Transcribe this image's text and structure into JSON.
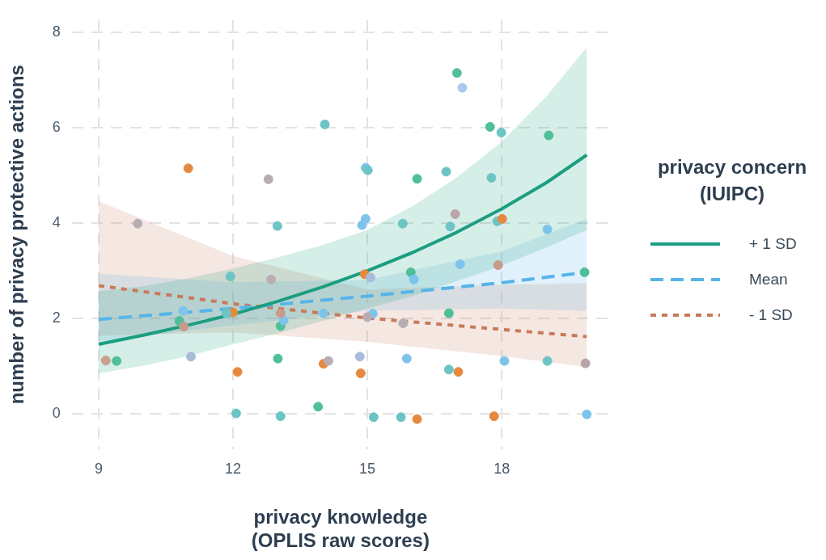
{
  "chart_data": {
    "type": "line",
    "xlabel": "privacy knowledge\n(OPLIS raw scores)",
    "ylabel": "number of privacy protective actions",
    "legend_title": "privacy concern\n(IUIPC)",
    "legend": "right",
    "grid": true,
    "xlim": [
      8.4,
      20.4
    ],
    "ylim": [
      -0.75,
      8.25
    ],
    "xticks": [
      9,
      12,
      15,
      18
    ],
    "yticks": [
      0,
      2,
      4,
      6,
      8
    ],
    "series": [
      {
        "type": "scatter",
        "marker": "circle",
        "x": [
          9.16,
          9.4,
          9.87,
          11.0,
          10.8,
          10.9,
          10.88,
          11.06,
          12.85,
          11.94,
          12.0,
          11.85,
          12.1,
          12.07,
          13.06,
          13.06,
          13.13,
          13.06,
          13.0,
          13.9,
          14.02,
          14.13,
          14.02,
          12.79,
          12.99,
          14.05,
          17.0,
          17.12,
          17.74,
          17.99,
          19.05,
          14.96,
          15.01,
          16.11,
          16.76,
          17.77,
          14.96,
          14.88,
          15.79,
          16.85,
          16.96,
          17.9,
          18.01,
          19.02,
          14.94,
          15.07,
          15.97,
          16.04,
          17.07,
          17.92,
          19.85,
          15.12,
          15.0,
          15.8,
          16.82,
          14.83,
          14.85,
          15.88,
          16.82,
          17.03,
          18.06,
          19.02,
          19.87,
          15.14,
          15.75,
          16.11,
          17.83,
          19.9
        ],
        "values": [
          1.11,
          1.1,
          3.98,
          5.14,
          1.94,
          1.82,
          2.15,
          1.19,
          2.81,
          2.87,
          2.12,
          2.1,
          0.87,
          0,
          -0.06,
          1.83,
          1.95,
          2.1,
          1.15,
          0.14,
          1.04,
          1.1,
          2.1,
          4.91,
          3.93,
          6.06,
          7.14,
          6.83,
          6.01,
          5.89,
          5.83,
          5.15,
          5.1,
          4.92,
          5.07,
          4.94,
          4.08,
          3.95,
          3.98,
          3.92,
          4.18,
          4.03,
          4.08,
          3.86,
          2.92,
          2.85,
          2.96,
          2.81,
          3.13,
          3.11,
          2.96,
          2.09,
          2.02,
          1.89,
          2.1,
          1.19,
          0.84,
          1.15,
          0.92,
          0.87,
          1.1,
          1.1,
          1.05,
          -0.08,
          -0.08,
          -0.12,
          -0.06,
          -0.02
        ],
        "colors": [
          "#c9a090",
          "#4fbf9a",
          "#b9adb5",
          "#e6893f",
          "#4fbf9a",
          "#c9998a",
          "#7ec4ea",
          "#a9bbd8",
          "#b9adb5",
          "#6cc4c4",
          "#e6893f",
          "#6cc4c4",
          "#e6893f",
          "#6cc4c4",
          "#6cc4c4",
          "#4fbf9a",
          "#7ec4ea",
          "#c9998a",
          "#4fbf9a",
          "#4fbf9a",
          "#e6893f",
          "#b9adb5",
          "#7ec4ea",
          "#b9adb5",
          "#6cc4c4",
          "#6cc4c4",
          "#4fbf9a",
          "#a9c8ea",
          "#4fbf9a",
          "#6cc4c4",
          "#4fbf9a",
          "#7ec4ea",
          "#6cc4c4",
          "#4fbf9a",
          "#6cc4c4",
          "#6cc4c4",
          "#7ec4ea",
          "#7ec4ea",
          "#6cc4c4",
          "#6cc4c4",
          "#b9a5a8",
          "#6cc4c4",
          "#e6893f",
          "#7ec4ea",
          "#e6893f",
          "#a9bbd8",
          "#4fbf9a",
          "#7ec4ea",
          "#7ec4ea",
          "#c9998a",
          "#4fbf9a",
          "#7ec4ea",
          "#b9adb5",
          "#b9adb5",
          "#4fbf9a",
          "#a9bbd8",
          "#e6893f",
          "#7ec4ea",
          "#6cc4c4",
          "#e6893f",
          "#7ec4ea",
          "#6cc4c4",
          "#b9a5a8",
          "#6cc4c4",
          "#6cc4c4",
          "#e6893f",
          "#e6893f",
          "#7ec4ea"
        ]
      },
      {
        "name": "+ 1 SD",
        "color": "#1b9e80",
        "line_style": "solid",
        "x": [
          9,
          10,
          11,
          12,
          13,
          14,
          15,
          16,
          17,
          18,
          19,
          19.9
        ],
        "values": [
          1.45,
          1.64,
          1.85,
          2.08,
          2.35,
          2.65,
          2.99,
          3.37,
          3.8,
          4.29,
          4.84,
          5.42
        ],
        "lower": [
          0.84,
          1.0,
          1.2,
          1.45,
          1.68,
          1.94,
          2.2,
          2.46,
          2.77,
          3.1,
          3.48,
          3.85
        ],
        "upper": [
          2.56,
          2.67,
          2.83,
          3.04,
          3.27,
          3.53,
          3.85,
          4.34,
          4.95,
          5.7,
          6.65,
          7.68
        ]
      },
      {
        "name": "Mean",
        "color": "#56b4e9",
        "line_style": "dashed",
        "x": [
          9,
          12,
          15,
          18,
          19.9
        ],
        "values": [
          1.97,
          2.2,
          2.46,
          2.74,
          2.96
        ],
        "lower": [
          1.5,
          1.85,
          2.15,
          2.2,
          2.15
        ],
        "upper": [
          2.93,
          2.75,
          2.8,
          3.4,
          4.08
        ]
      },
      {
        "name": "- 1 SD",
        "color": "#c8795a",
        "line_style": "dotted",
        "x": [
          9,
          12,
          15,
          18,
          19.9
        ],
        "values": [
          2.68,
          2.3,
          2.0,
          1.76,
          1.61
        ],
        "lower": [
          1.63,
          1.7,
          1.5,
          1.2,
          0.97
        ],
        "upper": [
          4.45,
          3.3,
          2.6,
          2.7,
          2.73
        ]
      }
    ]
  }
}
